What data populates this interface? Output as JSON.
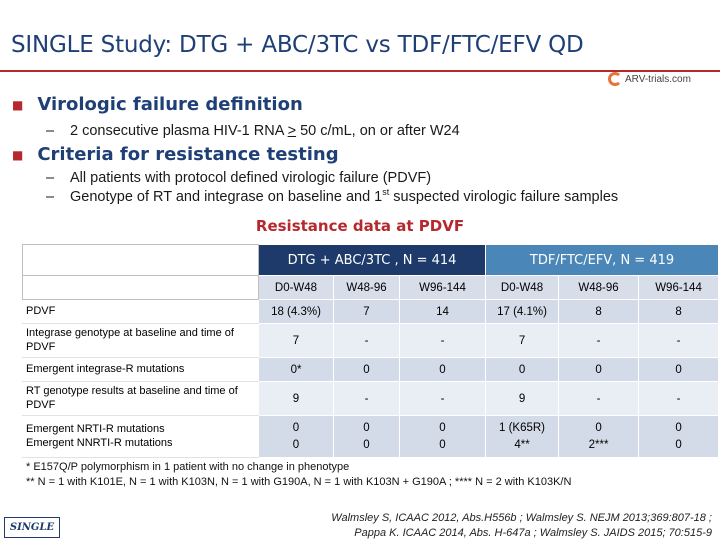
{
  "title": "SINGLE Study: DTG + ABC/3TC vs TDF/FTC/EFV QD",
  "logo": {
    "text": "ARV-trials.com"
  },
  "sections": [
    {
      "heading": "Virologic failure definition"
    },
    {
      "heading": "Criteria for resistance testing"
    }
  ],
  "vf_def": {
    "pre": "2 consecutive plasma HIV-1 RNA ",
    "ge": ">",
    "post": " 50 c/mL, on or after W24"
  },
  "criteria": {
    "line1": "All patients with protocol defined virologic failure (PDVF)",
    "line2_pre": "Genotype of RT and integrase on baseline and 1",
    "line2_sup": "st",
    "line2_post": " suspected virologic failure samples"
  },
  "resistance_title": "Resistance data at PDVF",
  "table": {
    "groups": [
      "DTG + ABC/3TC , N = 414",
      "TDF/FTC/EFV, N = 419"
    ],
    "subheaders": [
      "D0-W48",
      "W48-96",
      "W96-144",
      "D0-W48",
      "W48-96",
      "W96-144"
    ],
    "rows": [
      {
        "label": "PDVF",
        "cells": [
          "18 (4.3%)",
          "7",
          "14",
          "17 (4.1%)",
          "8",
          "8"
        ]
      },
      {
        "label": "Integrase genotype at baseline and time of PDVF",
        "cells": [
          "7",
          "-",
          "-",
          "7",
          "-",
          "-"
        ]
      },
      {
        "label": "Emergent integrase-R mutations",
        "cells": [
          "0*",
          "0",
          "0",
          "0",
          "0",
          "0"
        ]
      },
      {
        "label": "RT genotype results at baseline and time of PDVF",
        "cells": [
          "9",
          "-",
          "-",
          "9",
          "-",
          "-"
        ]
      },
      {
        "label1": "Emergent NRTI-R mutations",
        "label2": "Emergent NNRTI-R mutations",
        "cells": [
          [
            "0",
            "0"
          ],
          [
            "0",
            "0"
          ],
          [
            "0",
            "0"
          ],
          [
            "1 (K65R)",
            "4**"
          ],
          [
            "0",
            "2***"
          ],
          [
            "0",
            "0"
          ]
        ]
      }
    ]
  },
  "footnotes": [
    "* E157Q/P polymorphism in 1 patient with no change in phenotype",
    "** N = 1 with K101E, N = 1 with K103N, N = 1 with G190A, N = 1 with K103N + G190A ; **** N = 2 with K103K/N"
  ],
  "references": [
    "Walmsley S, ICAAC 2012, Abs.H556b ; Walmsley S. NEJM 2013;369:807-18 ;",
    "Pappa K. ICAAC 2014, Abs. H-647a ; Walmsley S. JAIDS 2015; 70:515-9"
  ],
  "study_tag": "SINGLE"
}
